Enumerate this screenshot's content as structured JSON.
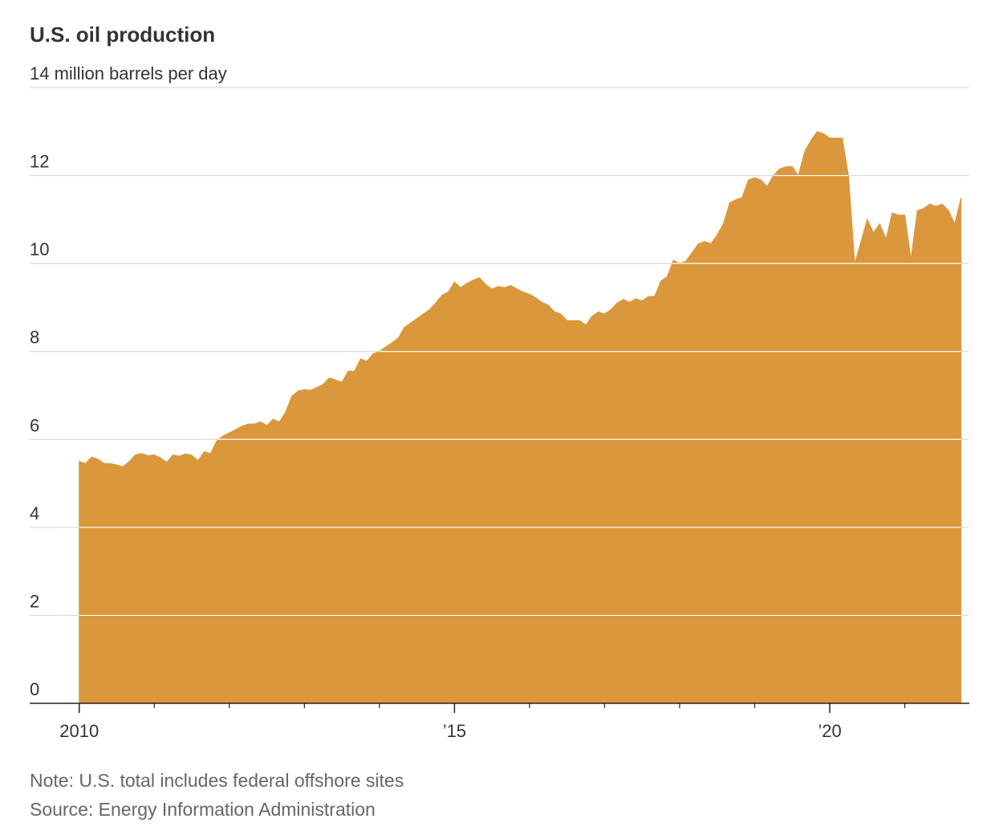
{
  "chart_data": {
    "type": "area",
    "title": "U.S. oil production",
    "note": "Note: U.S. total includes federal offshore sites",
    "source": "Source: Energy Information Administration",
    "color": "#da973c",
    "grid": true,
    "x": [
      2010.0,
      2010.083,
      2010.167,
      2010.25,
      2010.333,
      2010.417,
      2010.5,
      2010.583,
      2010.667,
      2010.75,
      2010.833,
      2010.917,
      2011.0,
      2011.083,
      2011.167,
      2011.25,
      2011.333,
      2011.417,
      2011.5,
      2011.583,
      2011.667,
      2011.75,
      2011.833,
      2011.917,
      2012.0,
      2012.083,
      2012.167,
      2012.25,
      2012.333,
      2012.417,
      2012.5,
      2012.583,
      2012.667,
      2012.75,
      2012.833,
      2012.917,
      2013.0,
      2013.083,
      2013.167,
      2013.25,
      2013.333,
      2013.417,
      2013.5,
      2013.583,
      2013.667,
      2013.75,
      2013.833,
      2013.917,
      2014.0,
      2014.083,
      2014.167,
      2014.25,
      2014.333,
      2014.417,
      2014.5,
      2014.583,
      2014.667,
      2014.75,
      2014.833,
      2014.917,
      2015.0,
      2015.083,
      2015.167,
      2015.25,
      2015.333,
      2015.417,
      2015.5,
      2015.583,
      2015.667,
      2015.75,
      2015.833,
      2015.917,
      2016.0,
      2016.083,
      2016.167,
      2016.25,
      2016.333,
      2016.417,
      2016.5,
      2016.583,
      2016.667,
      2016.75,
      2016.833,
      2016.917,
      2017.0,
      2017.083,
      2017.167,
      2017.25,
      2017.333,
      2017.417,
      2017.5,
      2017.583,
      2017.667,
      2017.75,
      2017.833,
      2017.917,
      2018.0,
      2018.083,
      2018.167,
      2018.25,
      2018.333,
      2018.417,
      2018.5,
      2018.583,
      2018.667,
      2018.75,
      2018.833,
      2018.917,
      2019.0,
      2019.083,
      2019.167,
      2019.25,
      2019.333,
      2019.417,
      2019.5,
      2019.583,
      2019.667,
      2019.75,
      2019.833,
      2019.917,
      2020.0,
      2020.083,
      2020.167,
      2020.25,
      2020.333,
      2020.417,
      2020.5,
      2020.583,
      2020.667,
      2020.75,
      2020.833,
      2020.917,
      2021.0,
      2021.083,
      2021.167,
      2021.25,
      2021.333,
      2021.417,
      2021.5,
      2021.583,
      2021.667,
      2021.75
    ],
    "values": [
      5.5,
      5.45,
      5.6,
      5.55,
      5.45,
      5.45,
      5.42,
      5.38,
      5.5,
      5.65,
      5.68,
      5.63,
      5.65,
      5.58,
      5.48,
      5.65,
      5.62,
      5.67,
      5.64,
      5.52,
      5.72,
      5.68,
      5.97,
      6.08,
      6.15,
      6.22,
      6.3,
      6.35,
      6.35,
      6.4,
      6.32,
      6.46,
      6.4,
      6.62,
      6.98,
      7.1,
      7.13,
      7.12,
      7.18,
      7.25,
      7.4,
      7.35,
      7.3,
      7.55,
      7.55,
      7.83,
      7.78,
      7.95,
      8.0,
      8.1,
      8.2,
      8.3,
      8.55,
      8.65,
      8.75,
      8.85,
      8.95,
      9.1,
      9.28,
      9.35,
      9.58,
      9.45,
      9.55,
      9.62,
      9.68,
      9.52,
      9.42,
      9.48,
      9.45,
      9.5,
      9.42,
      9.35,
      9.3,
      9.22,
      9.12,
      9.05,
      8.9,
      8.85,
      8.7,
      8.7,
      8.7,
      8.6,
      8.8,
      8.9,
      8.85,
      8.95,
      9.1,
      9.18,
      9.12,
      9.2,
      9.15,
      9.25,
      9.25,
      9.6,
      9.7,
      10.07,
      10.0,
      10.05,
      10.25,
      10.45,
      10.5,
      10.45,
      10.65,
      10.9,
      11.38,
      11.45,
      11.5,
      11.9,
      11.95,
      11.9,
      11.75,
      12.0,
      12.15,
      12.2,
      12.2,
      12.0,
      12.55,
      12.8,
      13.0,
      12.95,
      12.85,
      12.85,
      12.85,
      12.0,
      10.0,
      10.5,
      11.0,
      10.7,
      10.9,
      10.55,
      11.15,
      11.1,
      11.1,
      10.1,
      11.2,
      11.25,
      11.35,
      11.3,
      11.35,
      11.2,
      10.9,
      11.5
    ],
    "xlim": [
      2009.34,
      2021.86
    ],
    "xticks": [
      {
        "value": 2010,
        "label": "2010"
      },
      {
        "value": 2015,
        "label": "’15"
      },
      {
        "value": 2020,
        "label": "’20"
      }
    ],
    "xminorticks": [
      2011,
      2012,
      2013,
      2014,
      2016,
      2017,
      2018,
      2019,
      2021
    ],
    "ylim": [
      0,
      14
    ],
    "yticks": [
      0,
      2,
      4,
      6,
      8,
      10,
      12,
      {
        "value": 14,
        "label": "14 million barrels per day"
      }
    ]
  }
}
